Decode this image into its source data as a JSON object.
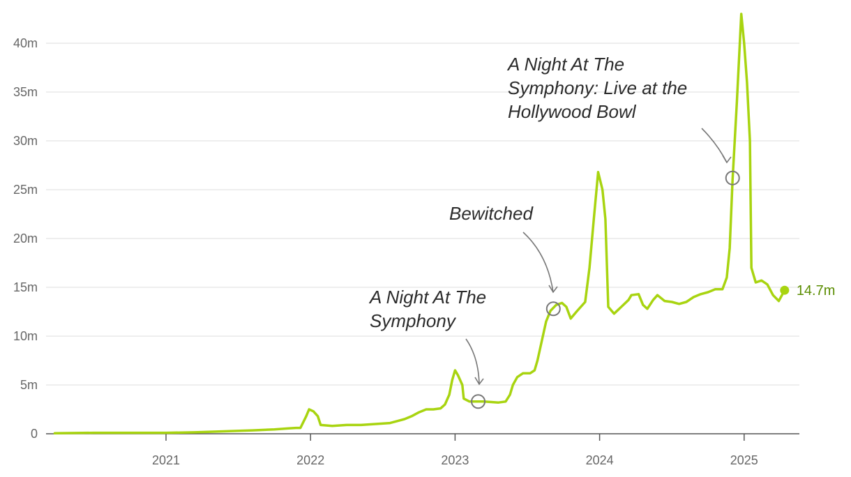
{
  "chart_data": {
    "type": "line",
    "xlabel": "",
    "ylabel": "",
    "ylim": [
      0,
      43
    ],
    "grid": true,
    "x_ticks": [
      {
        "year": 2021,
        "label": "2021"
      },
      {
        "year": 2022,
        "label": "2022"
      },
      {
        "year": 2023,
        "label": "2023"
      },
      {
        "year": 2024,
        "label": "2024"
      },
      {
        "year": 2025,
        "label": "2025"
      }
    ],
    "y_ticks": [
      {
        "value": 0,
        "label": "0"
      },
      {
        "value": 5,
        "label": "5m"
      },
      {
        "value": 10,
        "label": "10m"
      },
      {
        "value": 15,
        "label": "15m"
      },
      {
        "value": 20,
        "label": "20m"
      },
      {
        "value": 25,
        "label": "25m"
      },
      {
        "value": 30,
        "label": "30m"
      },
      {
        "value": 35,
        "label": "35m"
      },
      {
        "value": 40,
        "label": "40m"
      }
    ],
    "series": [
      {
        "color": "#a8d410",
        "points": [
          [
            2020.23,
            0.05
          ],
          [
            2020.5,
            0.1
          ],
          [
            2020.75,
            0.1
          ],
          [
            2021.0,
            0.1
          ],
          [
            2021.2,
            0.15
          ],
          [
            2021.4,
            0.25
          ],
          [
            2021.6,
            0.35
          ],
          [
            2021.75,
            0.45
          ],
          [
            2021.85,
            0.55
          ],
          [
            2021.9,
            0.6
          ],
          [
            2021.93,
            0.6
          ],
          [
            2021.97,
            1.8
          ],
          [
            2021.99,
            2.5
          ],
          [
            2022.02,
            2.3
          ],
          [
            2022.05,
            1.8
          ],
          [
            2022.07,
            0.9
          ],
          [
            2022.15,
            0.8
          ],
          [
            2022.25,
            0.9
          ],
          [
            2022.35,
            0.9
          ],
          [
            2022.45,
            1.0
          ],
          [
            2022.55,
            1.1
          ],
          [
            2022.6,
            1.3
          ],
          [
            2022.65,
            1.5
          ],
          [
            2022.7,
            1.8
          ],
          [
            2022.75,
            2.2
          ],
          [
            2022.8,
            2.5
          ],
          [
            2022.85,
            2.5
          ],
          [
            2022.9,
            2.6
          ],
          [
            2022.93,
            3.0
          ],
          [
            2022.96,
            4.0
          ],
          [
            2022.98,
            5.5
          ],
          [
            2023.0,
            6.5
          ],
          [
            2023.02,
            6.0
          ],
          [
            2023.05,
            5.0
          ],
          [
            2023.06,
            3.6
          ],
          [
            2023.1,
            3.3
          ],
          [
            2023.2,
            3.3
          ],
          [
            2023.3,
            3.2
          ],
          [
            2023.35,
            3.3
          ],
          [
            2023.38,
            4.0
          ],
          [
            2023.4,
            5.0
          ],
          [
            2023.43,
            5.8
          ],
          [
            2023.47,
            6.2
          ],
          [
            2023.52,
            6.2
          ],
          [
            2023.55,
            6.5
          ],
          [
            2023.57,
            7.5
          ],
          [
            2023.6,
            9.5
          ],
          [
            2023.63,
            11.5
          ],
          [
            2023.66,
            12.6
          ],
          [
            2023.7,
            13.2
          ],
          [
            2023.74,
            13.4
          ],
          [
            2023.77,
            13.0
          ],
          [
            2023.8,
            11.8
          ],
          [
            2023.84,
            12.5
          ],
          [
            2023.9,
            13.5
          ],
          [
            2023.93,
            17.0
          ],
          [
            2023.96,
            22.0
          ],
          [
            2023.99,
            26.8
          ],
          [
            2024.02,
            25.0
          ],
          [
            2024.04,
            22.0
          ],
          [
            2024.06,
            13.0
          ],
          [
            2024.1,
            12.3
          ],
          [
            2024.15,
            13.0
          ],
          [
            2024.2,
            13.7
          ],
          [
            2024.22,
            14.2
          ],
          [
            2024.27,
            14.3
          ],
          [
            2024.3,
            13.2
          ],
          [
            2024.33,
            12.8
          ],
          [
            2024.37,
            13.7
          ],
          [
            2024.4,
            14.2
          ],
          [
            2024.45,
            13.6
          ],
          [
            2024.5,
            13.5
          ],
          [
            2024.55,
            13.3
          ],
          [
            2024.6,
            13.5
          ],
          [
            2024.65,
            14.0
          ],
          [
            2024.7,
            14.3
          ],
          [
            2024.75,
            14.5
          ],
          [
            2024.8,
            14.8
          ],
          [
            2024.85,
            14.8
          ],
          [
            2024.88,
            16.0
          ],
          [
            2024.9,
            19.0
          ],
          [
            2024.92,
            26.0
          ],
          [
            2024.95,
            34.0
          ],
          [
            2024.98,
            43.0
          ],
          [
            2025.0,
            40.0
          ],
          [
            2025.02,
            36.0
          ],
          [
            2025.04,
            30.0
          ],
          [
            2025.05,
            17.0
          ],
          [
            2025.08,
            15.5
          ],
          [
            2025.12,
            15.7
          ],
          [
            2025.16,
            15.3
          ],
          [
            2025.2,
            14.2
          ],
          [
            2025.24,
            13.6
          ],
          [
            2025.28,
            14.7
          ]
        ]
      }
    ],
    "end_label": {
      "x": 2025.28,
      "value": 14.7,
      "label": "14.7m"
    },
    "annotations": [
      {
        "lines": [
          "A Night At The",
          "Symphony: Live at the",
          "Hollywood Bowl"
        ],
        "marker_x": 2024.92,
        "marker_value": 26.2
      },
      {
        "lines": [
          "Bewitched"
        ],
        "marker_x": 2023.68,
        "marker_value": 12.8
      },
      {
        "lines": [
          "A Night At The",
          "Symphony"
        ],
        "marker_x": 2023.16,
        "marker_value": 3.3
      }
    ]
  }
}
